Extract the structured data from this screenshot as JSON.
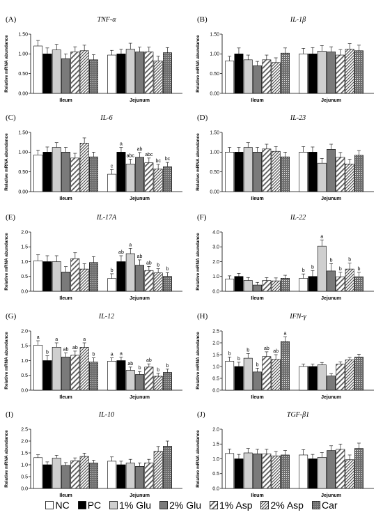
{
  "legend": {
    "items": [
      "NC",
      "PC",
      "1% Glu",
      "2% Glu",
      "1% Asp",
      "2% Asp",
      "Car"
    ]
  },
  "styles": {
    "NC": {
      "fill": "#ffffff"
    },
    "PC": {
      "fill": "#000000"
    },
    "1% Glu": {
      "fill": "#cfcfcf"
    },
    "2% Glu": {
      "fill": "#7a7a7a"
    },
    "1% Asp": {
      "fill": "#ffffff",
      "pattern": "wide-diagonal"
    },
    "2% Asp": {
      "fill": "#ffffff",
      "pattern": "dense-diagonal"
    },
    "Car": {
      "fill": "#6e6e6e",
      "pattern": "dots"
    }
  },
  "chart_data": [
    {
      "panel": "(A)",
      "title": "TNF-α",
      "type": "bar",
      "ylabel": "Relative mRNA abundance",
      "ylim": [
        0,
        1.5
      ],
      "yticks": [
        "0.00",
        "0.50",
        "1.00",
        "1.50"
      ],
      "categories": [
        "Ileum",
        "Jejunum"
      ],
      "series": [
        {
          "name": "NC",
          "values": [
            1.2,
            0.97
          ],
          "errors": [
            0.14,
            0.12
          ]
        },
        {
          "name": "PC",
          "values": [
            1.0,
            1.0
          ],
          "errors": [
            0.15,
            0.12
          ]
        },
        {
          "name": "1% Glu",
          "values": [
            1.1,
            1.12
          ],
          "errors": [
            0.14,
            0.15
          ]
        },
        {
          "name": "2% Glu",
          "values": [
            0.88,
            1.05
          ],
          "errors": [
            0.12,
            0.12
          ]
        },
        {
          "name": "1% Asp",
          "values": [
            1.05,
            1.05
          ],
          "errors": [
            0.13,
            0.12
          ]
        },
        {
          "name": "2% Asp",
          "values": [
            1.08,
            0.82
          ],
          "errors": [
            0.14,
            0.12
          ]
        },
        {
          "name": "Car",
          "values": [
            0.85,
            1.03
          ],
          "errors": [
            0.13,
            0.13
          ]
        }
      ],
      "sig": [
        [],
        []
      ]
    },
    {
      "panel": "(B)",
      "title": "IL-1β",
      "type": "bar",
      "ylabel": "Relative mRNA abundance",
      "ylim": [
        0,
        1.5
      ],
      "yticks": [
        "0.00",
        "0.50",
        "1.00",
        "1.50"
      ],
      "categories": [
        "Ileum",
        "Jejunum"
      ],
      "series": [
        {
          "name": "NC",
          "values": [
            0.82,
            1.0
          ],
          "errors": [
            0.12,
            0.14
          ]
        },
        {
          "name": "PC",
          "values": [
            1.0,
            1.0
          ],
          "errors": [
            0.15,
            0.16
          ]
        },
        {
          "name": "1% Glu",
          "values": [
            0.85,
            1.07
          ],
          "errors": [
            0.12,
            0.14
          ]
        },
        {
          "name": "2% Glu",
          "values": [
            0.7,
            1.05
          ],
          "errors": [
            0.11,
            0.13
          ]
        },
        {
          "name": "1% Asp",
          "values": [
            0.85,
            0.97
          ],
          "errors": [
            0.12,
            0.14
          ]
        },
        {
          "name": "2% Asp",
          "values": [
            0.78,
            1.12
          ],
          "errors": [
            0.12,
            0.14
          ]
        },
        {
          "name": "Car",
          "values": [
            1.02,
            1.08
          ],
          "errors": [
            0.13,
            0.14
          ]
        }
      ],
      "sig": [
        [],
        []
      ]
    },
    {
      "panel": "(C)",
      "title": "IL-6",
      "type": "bar",
      "ylabel": "Relative mRNA abundance",
      "ylim": [
        0,
        1.5
      ],
      "yticks": [
        "0.00",
        "0.50",
        "1.00",
        "1.50"
      ],
      "categories": [
        "Ileum",
        "Jejunum"
      ],
      "series": [
        {
          "name": "NC",
          "values": [
            0.93,
            0.44
          ],
          "errors": [
            0.12,
            0.12
          ]
        },
        {
          "name": "PC",
          "values": [
            1.0,
            1.0
          ],
          "errors": [
            0.13,
            0.12
          ]
        },
        {
          "name": "1% Glu",
          "values": [
            1.12,
            0.7
          ],
          "errors": [
            0.12,
            0.12
          ]
        },
        {
          "name": "2% Glu",
          "values": [
            1.0,
            0.87
          ],
          "errors": [
            0.12,
            0.12
          ]
        },
        {
          "name": "1% Asp",
          "values": [
            0.85,
            0.73
          ],
          "errors": [
            0.12,
            0.12
          ]
        },
        {
          "name": "2% Asp",
          "values": [
            1.23,
            0.57
          ],
          "errors": [
            0.13,
            0.12
          ]
        },
        {
          "name": "Car",
          "values": [
            0.88,
            0.63
          ],
          "errors": [
            0.12,
            0.11
          ]
        }
      ],
      "sig": [
        [],
        [
          "c",
          "a",
          "abc",
          "ab",
          "abc",
          "bc",
          "bc"
        ]
      ]
    },
    {
      "panel": "(D)",
      "title": "IL-23",
      "type": "bar",
      "ylabel": "Relative mRNA abundance",
      "ylim": [
        0,
        1.5
      ],
      "yticks": [
        "0.00",
        "0.50",
        "1.00",
        "1.50"
      ],
      "categories": [
        "Ileum",
        "Jejunum"
      ],
      "series": [
        {
          "name": "NC",
          "values": [
            1.0,
            1.0
          ],
          "errors": [
            0.12,
            0.14
          ]
        },
        {
          "name": "PC",
          "values": [
            1.0,
            1.0
          ],
          "errors": [
            0.12,
            0.13
          ]
        },
        {
          "name": "1% Glu",
          "values": [
            1.12,
            0.72
          ],
          "errors": [
            0.12,
            0.12
          ]
        },
        {
          "name": "2% Glu",
          "values": [
            1.0,
            1.07
          ],
          "errors": [
            0.12,
            0.13
          ]
        },
        {
          "name": "1% Asp",
          "values": [
            1.08,
            0.87
          ],
          "errors": [
            0.12,
            0.12
          ]
        },
        {
          "name": "2% Asp",
          "values": [
            1.02,
            0.7
          ],
          "errors": [
            0.12,
            0.12
          ]
        },
        {
          "name": "Car",
          "values": [
            0.88,
            0.92
          ],
          "errors": [
            0.12,
            0.12
          ]
        }
      ],
      "sig": [
        [],
        []
      ]
    },
    {
      "panel": "(E)",
      "title": "IL-17A",
      "type": "bar",
      "ylabel": "Relative mRNA abundance",
      "ylim": [
        0,
        2.0
      ],
      "yticks": [
        "0.0",
        "0.5",
        "1.0",
        "1.5",
        "2.0"
      ],
      "categories": [
        "Ileum",
        "Jejunum"
      ],
      "series": [
        {
          "name": "NC",
          "values": [
            1.03,
            0.43
          ],
          "errors": [
            0.2,
            0.16
          ]
        },
        {
          "name": "PC",
          "values": [
            1.0,
            1.0
          ],
          "errors": [
            0.2,
            0.2
          ]
        },
        {
          "name": "1% Glu",
          "values": [
            1.0,
            1.27
          ],
          "errors": [
            0.2,
            0.18
          ]
        },
        {
          "name": "2% Glu",
          "values": [
            0.65,
            0.88
          ],
          "errors": [
            0.18,
            0.18
          ]
        },
        {
          "name": "1% Asp",
          "values": [
            1.1,
            0.7
          ],
          "errors": [
            0.2,
            0.14
          ]
        },
        {
          "name": "2% Asp",
          "values": [
            0.75,
            0.62
          ],
          "errors": [
            0.18,
            0.14
          ]
        },
        {
          "name": "Car",
          "values": [
            0.97,
            0.5
          ],
          "errors": [
            0.2,
            0.13
          ]
        }
      ],
      "sig": [
        [],
        [
          "b",
          "ab",
          "a",
          "ab",
          "ab",
          "b",
          "b"
        ]
      ]
    },
    {
      "panel": "(F)",
      "title": "IL-22",
      "type": "bar",
      "ylabel": "Relative mRNA abundance",
      "ylim": [
        0,
        4.0
      ],
      "yticks": [
        "0.0",
        "1.0",
        "2.0",
        "3.0",
        "4.0"
      ],
      "categories": [
        "Ileum",
        "Jejunum"
      ],
      "series": [
        {
          "name": "NC",
          "values": [
            0.82,
            0.87
          ],
          "errors": [
            0.22,
            0.3
          ]
        },
        {
          "name": "PC",
          "values": [
            1.0,
            1.0
          ],
          "errors": [
            0.2,
            0.4
          ]
        },
        {
          "name": "1% Glu",
          "values": [
            0.73,
            3.05
          ],
          "errors": [
            0.2,
            0.42
          ]
        },
        {
          "name": "2% Glu",
          "values": [
            0.42,
            1.37
          ],
          "errors": [
            0.18,
            0.5
          ]
        },
        {
          "name": "1% Asp",
          "values": [
            0.72,
            0.98
          ],
          "errors": [
            0.2,
            0.3
          ]
        },
        {
          "name": "2% Asp",
          "values": [
            0.7,
            1.5
          ],
          "errors": [
            0.2,
            0.4
          ]
        },
        {
          "name": "Car",
          "values": [
            0.88,
            0.98
          ],
          "errors": [
            0.2,
            0.3
          ]
        }
      ],
      "sig": [
        [],
        [
          "b",
          "b",
          "a",
          "b",
          "b",
          "b",
          "b"
        ]
      ]
    },
    {
      "panel": "(G)",
      "title": "IL-12",
      "type": "bar",
      "ylabel": "Relative mRNA abundance",
      "ylim": [
        0,
        2.0
      ],
      "yticks": [
        "0.0",
        "0.5",
        "1.0",
        "1.5",
        "2.0"
      ],
      "categories": [
        "Ileum",
        "Jejunum"
      ],
      "series": [
        {
          "name": "NC",
          "values": [
            1.52,
            0.98
          ],
          "errors": [
            0.15,
            0.11
          ]
        },
        {
          "name": "PC",
          "values": [
            1.0,
            1.0
          ],
          "errors": [
            0.16,
            0.12
          ]
        },
        {
          "name": "1% Glu",
          "values": [
            1.45,
            0.67
          ],
          "errors": [
            0.15,
            0.11
          ]
        },
        {
          "name": "2% Glu",
          "values": [
            1.12,
            0.53
          ],
          "errors": [
            0.14,
            0.1
          ]
        },
        {
          "name": "1% Asp",
          "values": [
            1.18,
            0.78
          ],
          "errors": [
            0.14,
            0.11
          ]
        },
        {
          "name": "2% Asp",
          "values": [
            1.45,
            0.47
          ],
          "errors": [
            0.15,
            0.1
          ]
        },
        {
          "name": "Car",
          "values": [
            0.95,
            0.6
          ],
          "errors": [
            0.14,
            0.11
          ]
        }
      ],
      "sig": [
        [
          "a",
          "b",
          "a",
          "ab",
          "ab",
          "a",
          "b"
        ],
        [
          "a",
          "a",
          "ab",
          "b",
          "ab",
          "b",
          "b"
        ]
      ]
    },
    {
      "panel": "(H)",
      "title": "IFN-γ",
      "type": "bar",
      "ylabel": "Relative mRNA abundance",
      "ylim": [
        0,
        2.5
      ],
      "yticks": [
        "0.0",
        "0.5",
        "1.0",
        "1.5",
        "2.0",
        "2.5"
      ],
      "categories": [
        "Ileum",
        "Jejunum"
      ],
      "series": [
        {
          "name": "NC",
          "values": [
            1.22,
            1.0
          ],
          "errors": [
            0.18,
            0.1
          ]
        },
        {
          "name": "PC",
          "values": [
            1.0,
            1.0
          ],
          "errors": [
            0.18,
            0.1
          ]
        },
        {
          "name": "1% Glu",
          "values": [
            1.35,
            1.07
          ],
          "errors": [
            0.2,
            0.1
          ]
        },
        {
          "name": "2% Glu",
          "values": [
            0.77,
            0.6
          ],
          "errors": [
            0.16,
            0.1
          ]
        },
        {
          "name": "1% Asp",
          "values": [
            1.42,
            1.1
          ],
          "errors": [
            0.2,
            0.1
          ]
        },
        {
          "name": "2% Asp",
          "values": [
            1.3,
            1.28
          ],
          "errors": [
            0.2,
            0.1
          ]
        },
        {
          "name": "Car",
          "values": [
            2.05,
            1.4
          ],
          "errors": [
            0.2,
            0.12
          ]
        }
      ],
      "sig": [
        [
          "b",
          "b",
          "b",
          "b",
          "ab",
          "ab",
          "a"
        ],
        []
      ]
    },
    {
      "panel": "(I)",
      "title": "IL-10",
      "type": "bar",
      "ylabel": "Relative mRNA abundance",
      "ylim": [
        0,
        2.5
      ],
      "yticks": [
        "0.0",
        "0.5",
        "1.0",
        "1.5",
        "2.0",
        "2.5"
      ],
      "categories": [
        "Ileum",
        "Jejunum"
      ],
      "series": [
        {
          "name": "NC",
          "values": [
            1.3,
            1.15
          ],
          "errors": [
            0.12,
            0.18
          ]
        },
        {
          "name": "PC",
          "values": [
            1.0,
            1.0
          ],
          "errors": [
            0.12,
            0.15
          ]
        },
        {
          "name": "1% Glu",
          "values": [
            1.28,
            1.07
          ],
          "errors": [
            0.12,
            0.16
          ]
        },
        {
          "name": "2% Glu",
          "values": [
            0.97,
            0.93
          ],
          "errors": [
            0.12,
            0.15
          ]
        },
        {
          "name": "1% Asp",
          "values": [
            1.17,
            1.08
          ],
          "errors": [
            0.12,
            0.15
          ]
        },
        {
          "name": "2% Asp",
          "values": [
            1.35,
            1.57
          ],
          "errors": [
            0.14,
            0.2
          ]
        },
        {
          "name": "Car",
          "values": [
            1.07,
            1.78
          ],
          "errors": [
            0.12,
            0.22
          ]
        }
      ],
      "sig": [
        [],
        []
      ]
    },
    {
      "panel": "(J)",
      "title": "TGF-β1",
      "type": "bar",
      "ylabel": "Relative mRNA abundance",
      "ylim": [
        0,
        2.0
      ],
      "yticks": [
        "0.0",
        "0.5",
        "1.0",
        "1.5",
        "2.0"
      ],
      "categories": [
        "Ileum",
        "Jejunum"
      ],
      "series": [
        {
          "name": "NC",
          "values": [
            1.18,
            1.13
          ],
          "errors": [
            0.15,
            0.18
          ]
        },
        {
          "name": "PC",
          "values": [
            1.0,
            1.0
          ],
          "errors": [
            0.15,
            0.15
          ]
        },
        {
          "name": "1% Glu",
          "values": [
            1.2,
            1.05
          ],
          "errors": [
            0.15,
            0.16
          ]
        },
        {
          "name": "2% Glu",
          "values": [
            1.17,
            1.28
          ],
          "errors": [
            0.15,
            0.16
          ]
        },
        {
          "name": "1% Asp",
          "values": [
            1.17,
            1.32
          ],
          "errors": [
            0.15,
            0.18
          ]
        },
        {
          "name": "2% Asp",
          "values": [
            1.1,
            0.97
          ],
          "errors": [
            0.15,
            0.16
          ]
        },
        {
          "name": "Car",
          "values": [
            1.13,
            1.35
          ],
          "errors": [
            0.15,
            0.18
          ]
        }
      ],
      "sig": [
        [],
        []
      ]
    }
  ]
}
